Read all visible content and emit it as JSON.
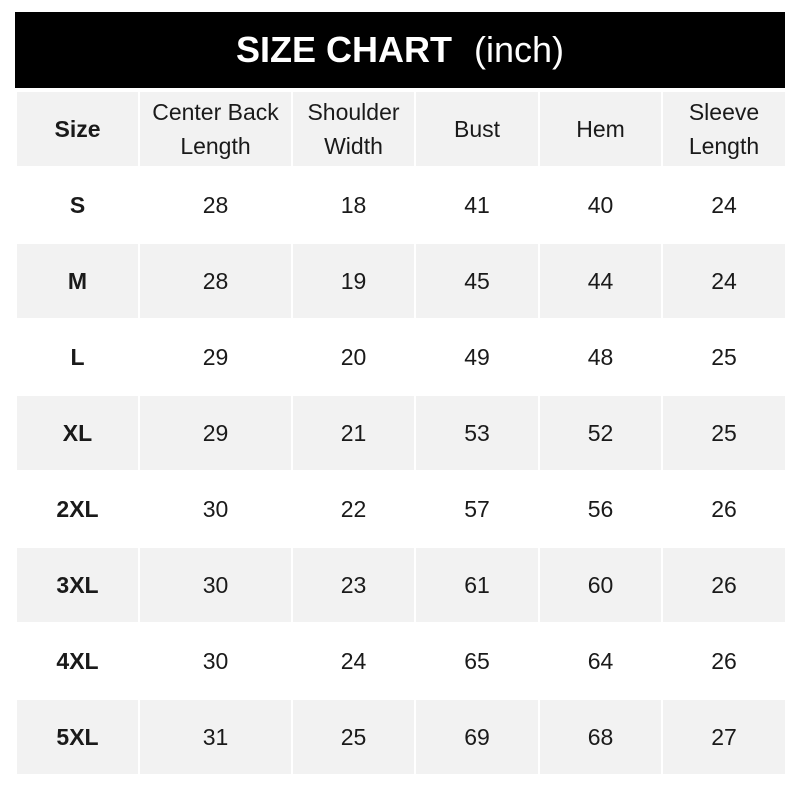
{
  "title": {
    "main": "SIZE CHART",
    "unit": "(inch)"
  },
  "colors": {
    "title_bg": "#000000",
    "stripe": "#f2f2f2"
  },
  "headers": [
    "Size",
    "Center Back Length",
    "Shoulder Width",
    "Bust",
    "Hem",
    "Sleeve Length"
  ],
  "rows": [
    [
      "S",
      "28",
      "18",
      "41",
      "40",
      "24"
    ],
    [
      "M",
      "28",
      "19",
      "45",
      "44",
      "24"
    ],
    [
      "L",
      "29",
      "20",
      "49",
      "48",
      "25"
    ],
    [
      "XL",
      "29",
      "21",
      "53",
      "52",
      "25"
    ],
    [
      "2XL",
      "30",
      "22",
      "57",
      "56",
      "26"
    ],
    [
      "3XL",
      "30",
      "23",
      "61",
      "60",
      "26"
    ],
    [
      "4XL",
      "30",
      "24",
      "65",
      "64",
      "26"
    ],
    [
      "5XL",
      "31",
      "25",
      "69",
      "68",
      "27"
    ]
  ]
}
